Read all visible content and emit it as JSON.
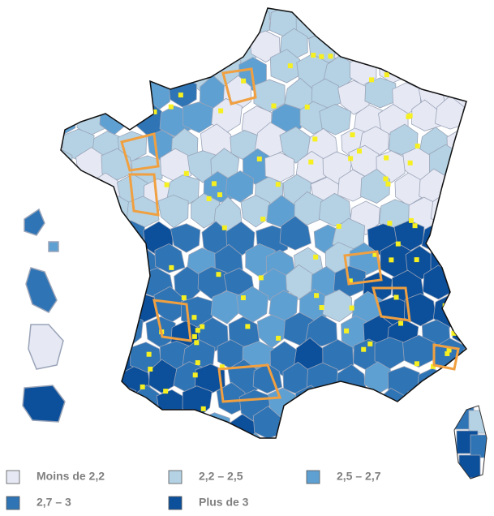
{
  "legend": {
    "items": [
      {
        "label": "Moins de 2,2",
        "color": "#e6e8f4"
      },
      {
        "label": "2,2 – 2,5",
        "color": "#b4d2e4"
      },
      {
        "label": "2,5 – 2,7",
        "color": "#5fa0d2"
      },
      {
        "label": "2,7 – 3",
        "color": "#2f74b5"
      },
      {
        "label": "Plus de 3",
        "color": "#0c4f9a"
      }
    ]
  }
}
